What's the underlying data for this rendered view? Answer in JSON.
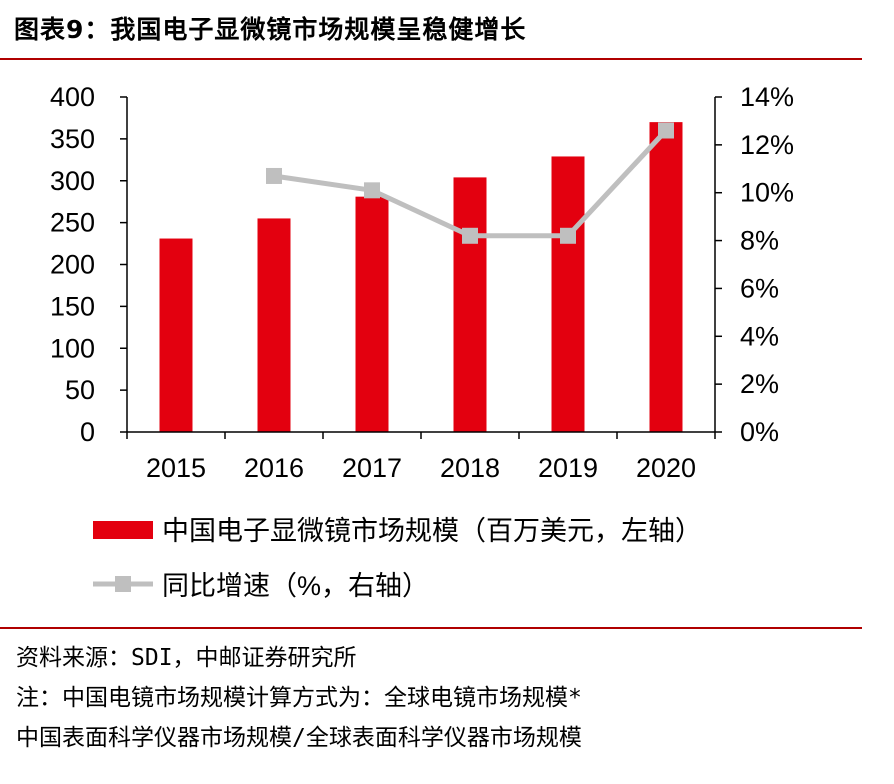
{
  "title": "图表9：我国电子显微镜市场规模呈稳健增长",
  "chart_data": {
    "type": "bar",
    "categories": [
      "2015",
      "2016",
      "2017",
      "2018",
      "2019",
      "2020"
    ],
    "series": [
      {
        "name": "中国电子显微镜市场规模（百万美元，左轴）",
        "type": "bar",
        "axis": "left",
        "values": [
          231,
          255,
          281,
          304,
          329,
          370
        ],
        "color": "#e3000f"
      },
      {
        "name": "同比增速（%，右轴）",
        "type": "line",
        "axis": "right",
        "values": [
          null,
          10.7,
          10.1,
          8.2,
          8.2,
          12.6
        ],
        "color": "#bfbfbf"
      }
    ],
    "left_axis": {
      "ylim": [
        0,
        400
      ],
      "ticks": [
        "0",
        "50",
        "100",
        "150",
        "200",
        "250",
        "300",
        "350",
        "400"
      ]
    },
    "right_axis": {
      "ylim": [
        0,
        14
      ],
      "ticks": [
        "0%",
        "2%",
        "4%",
        "6%",
        "8%",
        "10%",
        "12%",
        "14%"
      ]
    },
    "grid": false,
    "legend_position": "bottom"
  },
  "notes": {
    "source": "资料来源：SDI，中邮证券研究所",
    "line1": "注：中国电镜市场规模计算方式为：全球电镜市场规模*",
    "line2": "中国表面科学仪器市场规模/全球表面科学仪器市场规模"
  }
}
